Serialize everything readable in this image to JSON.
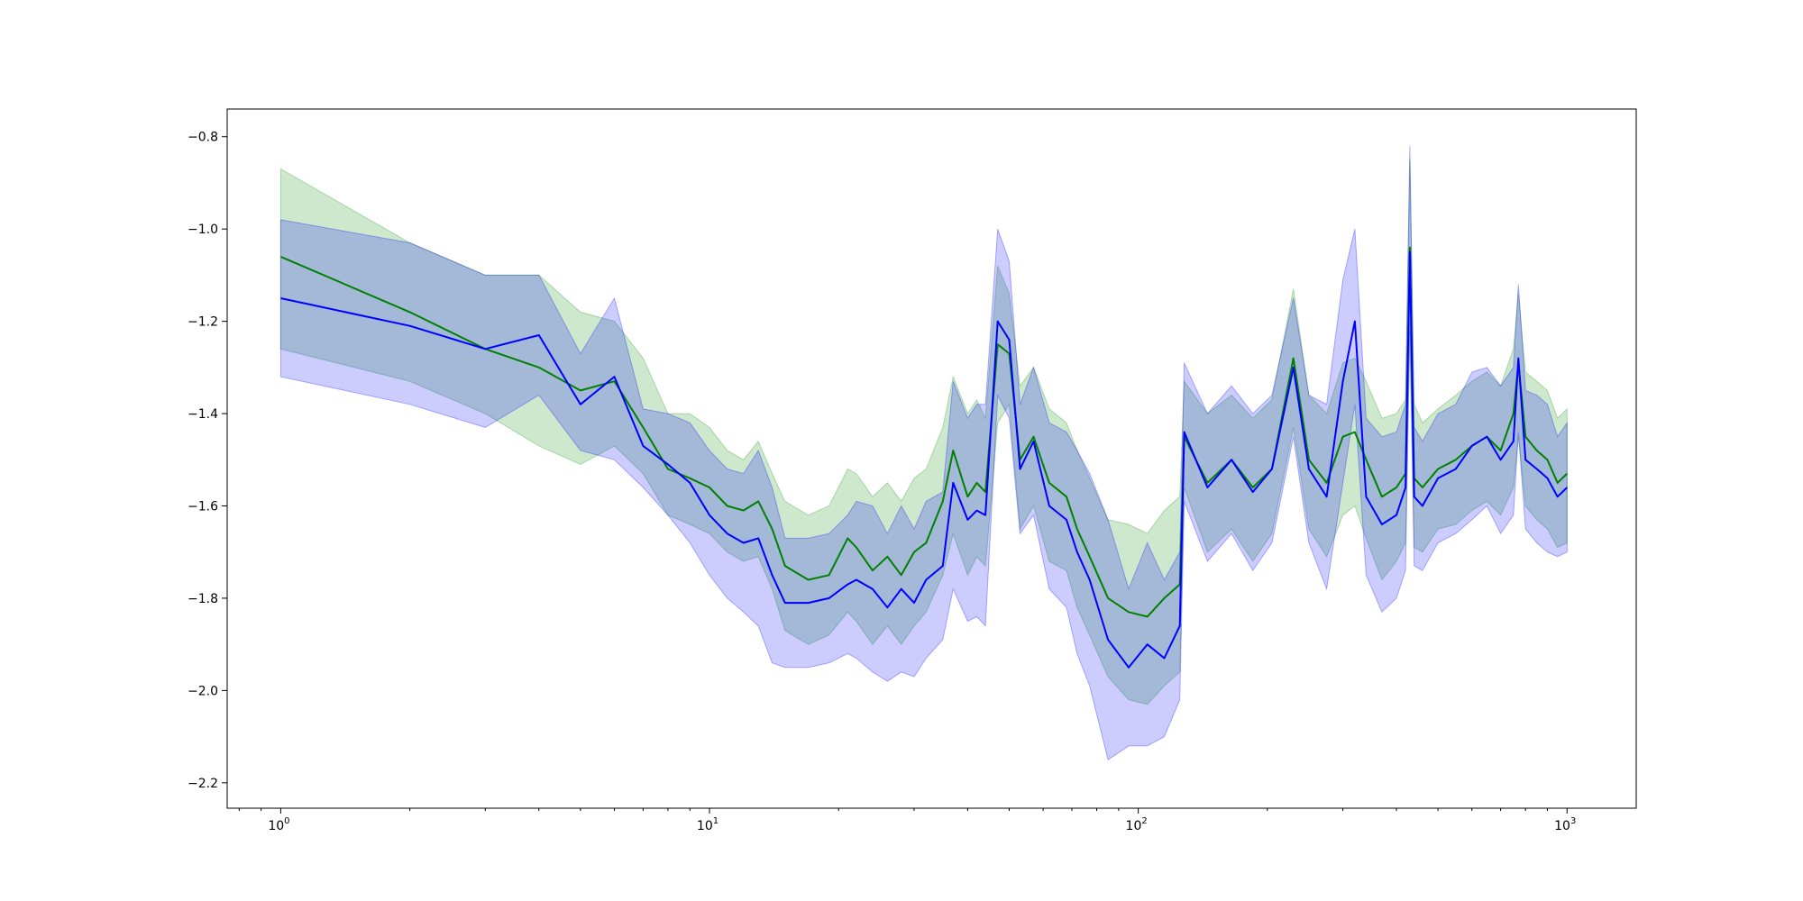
{
  "chart_data": {
    "type": "line",
    "title": "",
    "xlabel": "",
    "ylabel": "",
    "xscale": "log",
    "xlim": [
      0.75,
      1450
    ],
    "ylim": [
      -2.255,
      -0.74
    ],
    "grid": false,
    "legend": "none",
    "x_ticks": [
      {
        "value": 1,
        "base": "10",
        "exp": "0"
      },
      {
        "value": 10,
        "base": "10",
        "exp": "1"
      },
      {
        "value": 100,
        "base": "10",
        "exp": "2"
      },
      {
        "value": 1000,
        "base": "10",
        "exp": "3"
      }
    ],
    "y_ticks": [
      {
        "value": -0.8,
        "label": "−0.8"
      },
      {
        "value": -1.0,
        "label": "−1.0"
      },
      {
        "value": -1.2,
        "label": "−1.2"
      },
      {
        "value": -1.4,
        "label": "−1.4"
      },
      {
        "value": -1.6,
        "label": "−1.6"
      },
      {
        "value": -1.8,
        "label": "−1.8"
      },
      {
        "value": -2.0,
        "label": "−2.0"
      },
      {
        "value": -2.2,
        "label": "−2.2"
      }
    ],
    "series": [
      {
        "color": "#008000",
        "band_color": "#2ca02c",
        "band_opacity": 0.24,
        "x": [
          1,
          2,
          3,
          4,
          5,
          6,
          7,
          8,
          9,
          10,
          11,
          12,
          13,
          14,
          15,
          17,
          19,
          21,
          22,
          24,
          26,
          28,
          30,
          32,
          35,
          37,
          40,
          42,
          44,
          47,
          50,
          53,
          57,
          62,
          68,
          72,
          77,
          85,
          95,
          105,
          115,
          125,
          128,
          145,
          165,
          185,
          205,
          230,
          250,
          275,
          300,
          320,
          340,
          370,
          400,
          420,
          430,
          440,
          460,
          500,
          550,
          600,
          650,
          700,
          750,
          770,
          800,
          850,
          900,
          950,
          1000
        ],
        "y": [
          -1.06,
          -1.18,
          -1.26,
          -1.3,
          -1.35,
          -1.33,
          -1.43,
          -1.52,
          -1.54,
          -1.56,
          -1.6,
          -1.61,
          -1.59,
          -1.65,
          -1.73,
          -1.76,
          -1.75,
          -1.67,
          -1.69,
          -1.74,
          -1.71,
          -1.75,
          -1.7,
          -1.68,
          -1.59,
          -1.48,
          -1.58,
          -1.55,
          -1.57,
          -1.25,
          -1.27,
          -1.5,
          -1.45,
          -1.55,
          -1.58,
          -1.65,
          -1.71,
          -1.8,
          -1.83,
          -1.84,
          -1.8,
          -1.77,
          -1.45,
          -1.55,
          -1.5,
          -1.56,
          -1.52,
          -1.28,
          -1.5,
          -1.55,
          -1.45,
          -1.44,
          -1.5,
          -1.58,
          -1.56,
          -1.53,
          -1.04,
          -1.54,
          -1.56,
          -1.52,
          -1.5,
          -1.47,
          -1.45,
          -1.48,
          -1.4,
          -1.29,
          -1.45,
          -1.48,
          -1.5,
          -1.55,
          -1.53
        ],
        "lo": [
          -1.26,
          -1.33,
          -1.4,
          -1.47,
          -1.51,
          -1.47,
          -1.53,
          -1.62,
          -1.64,
          -1.66,
          -1.7,
          -1.72,
          -1.71,
          -1.78,
          -1.87,
          -1.9,
          -1.88,
          -1.83,
          -1.85,
          -1.9,
          -1.86,
          -1.9,
          -1.86,
          -1.83,
          -1.75,
          -1.66,
          -1.75,
          -1.71,
          -1.73,
          -1.42,
          -1.38,
          -1.65,
          -1.6,
          -1.72,
          -1.74,
          -1.82,
          -1.88,
          -1.97,
          -2.02,
          -2.03,
          -1.99,
          -1.96,
          -1.56,
          -1.7,
          -1.65,
          -1.72,
          -1.66,
          -1.43,
          -1.65,
          -1.71,
          -1.62,
          -1.6,
          -1.67,
          -1.76,
          -1.72,
          -1.68,
          -1.2,
          -1.69,
          -1.7,
          -1.65,
          -1.64,
          -1.61,
          -1.59,
          -1.62,
          -1.56,
          -1.45,
          -1.6,
          -1.63,
          -1.65,
          -1.69,
          -1.68
        ],
        "hi": [
          -0.87,
          -1.03,
          -1.1,
          -1.1,
          -1.18,
          -1.2,
          -1.28,
          -1.4,
          -1.4,
          -1.43,
          -1.48,
          -1.5,
          -1.46,
          -1.53,
          -1.59,
          -1.62,
          -1.6,
          -1.52,
          -1.53,
          -1.58,
          -1.55,
          -1.59,
          -1.54,
          -1.52,
          -1.43,
          -1.32,
          -1.4,
          -1.37,
          -1.41,
          -1.08,
          -1.14,
          -1.34,
          -1.3,
          -1.39,
          -1.42,
          -1.48,
          -1.54,
          -1.63,
          -1.64,
          -1.66,
          -1.61,
          -1.58,
          -1.33,
          -1.4,
          -1.36,
          -1.41,
          -1.37,
          -1.13,
          -1.36,
          -1.4,
          -1.29,
          -1.28,
          -1.33,
          -1.41,
          -1.4,
          -1.37,
          -0.85,
          -1.38,
          -1.42,
          -1.39,
          -1.36,
          -1.33,
          -1.31,
          -1.34,
          -1.26,
          -1.14,
          -1.31,
          -1.33,
          -1.35,
          -1.41,
          -1.39
        ]
      },
      {
        "color": "#0000ff",
        "band_color": "#0000ff",
        "band_opacity": 0.2,
        "x": [
          1,
          2,
          3,
          4,
          5,
          6,
          7,
          8,
          9,
          10,
          11,
          12,
          13,
          14,
          15,
          17,
          19,
          21,
          22,
          24,
          26,
          28,
          30,
          32,
          35,
          37,
          40,
          42,
          44,
          47,
          50,
          53,
          57,
          62,
          68,
          72,
          77,
          85,
          95,
          105,
          115,
          125,
          128,
          145,
          165,
          185,
          205,
          230,
          250,
          275,
          300,
          320,
          340,
          370,
          400,
          420,
          430,
          440,
          460,
          500,
          550,
          600,
          650,
          700,
          750,
          770,
          800,
          850,
          900,
          950,
          1000
        ],
        "y": [
          -1.15,
          -1.21,
          -1.26,
          -1.23,
          -1.38,
          -1.32,
          -1.47,
          -1.51,
          -1.55,
          -1.62,
          -1.66,
          -1.68,
          -1.67,
          -1.75,
          -1.81,
          -1.81,
          -1.8,
          -1.77,
          -1.76,
          -1.78,
          -1.82,
          -1.78,
          -1.81,
          -1.76,
          -1.73,
          -1.55,
          -1.63,
          -1.61,
          -1.62,
          -1.2,
          -1.24,
          -1.52,
          -1.46,
          -1.6,
          -1.63,
          -1.7,
          -1.76,
          -1.89,
          -1.95,
          -1.9,
          -1.93,
          -1.86,
          -1.44,
          -1.56,
          -1.5,
          -1.57,
          -1.52,
          -1.3,
          -1.52,
          -1.58,
          -1.33,
          -1.2,
          -1.58,
          -1.64,
          -1.62,
          -1.56,
          -1.05,
          -1.58,
          -1.6,
          -1.54,
          -1.52,
          -1.47,
          -1.45,
          -1.5,
          -1.46,
          -1.28,
          -1.5,
          -1.52,
          -1.54,
          -1.58,
          -1.56
        ],
        "lo": [
          -1.32,
          -1.38,
          -1.43,
          -1.36,
          -1.48,
          -1.5,
          -1.56,
          -1.62,
          -1.68,
          -1.75,
          -1.8,
          -1.83,
          -1.86,
          -1.94,
          -1.95,
          -1.95,
          -1.94,
          -1.92,
          -1.93,
          -1.96,
          -1.98,
          -1.96,
          -1.97,
          -1.93,
          -1.89,
          -1.78,
          -1.85,
          -1.84,
          -1.86,
          -1.36,
          -1.41,
          -1.66,
          -1.62,
          -1.78,
          -1.82,
          -1.92,
          -1.99,
          -2.15,
          -2.12,
          -2.12,
          -2.1,
          -2.02,
          -1.59,
          -1.72,
          -1.66,
          -1.74,
          -1.68,
          -1.45,
          -1.68,
          -1.78,
          -1.55,
          -1.38,
          -1.75,
          -1.83,
          -1.8,
          -1.74,
          -1.22,
          -1.73,
          -1.74,
          -1.68,
          -1.66,
          -1.63,
          -1.6,
          -1.66,
          -1.62,
          -1.44,
          -1.65,
          -1.68,
          -1.7,
          -1.71,
          -1.7
        ],
        "hi": [
          -0.98,
          -1.03,
          -1.1,
          -1.1,
          -1.27,
          -1.15,
          -1.39,
          -1.4,
          -1.42,
          -1.48,
          -1.52,
          -1.53,
          -1.48,
          -1.56,
          -1.67,
          -1.67,
          -1.66,
          -1.62,
          -1.59,
          -1.6,
          -1.66,
          -1.6,
          -1.65,
          -1.59,
          -1.57,
          -1.33,
          -1.41,
          -1.38,
          -1.38,
          -1.0,
          -1.07,
          -1.38,
          -1.3,
          -1.42,
          -1.44,
          -1.48,
          -1.53,
          -1.63,
          -1.78,
          -1.68,
          -1.76,
          -1.7,
          -1.29,
          -1.4,
          -1.34,
          -1.4,
          -1.36,
          -1.15,
          -1.36,
          -1.38,
          -1.11,
          -1.0,
          -1.41,
          -1.45,
          -1.44,
          -1.38,
          -0.82,
          -1.43,
          -1.46,
          -1.4,
          -1.38,
          -1.31,
          -1.3,
          -1.34,
          -1.3,
          -1.12,
          -1.35,
          -1.36,
          -1.38,
          -1.45,
          -1.42
        ]
      }
    ]
  }
}
